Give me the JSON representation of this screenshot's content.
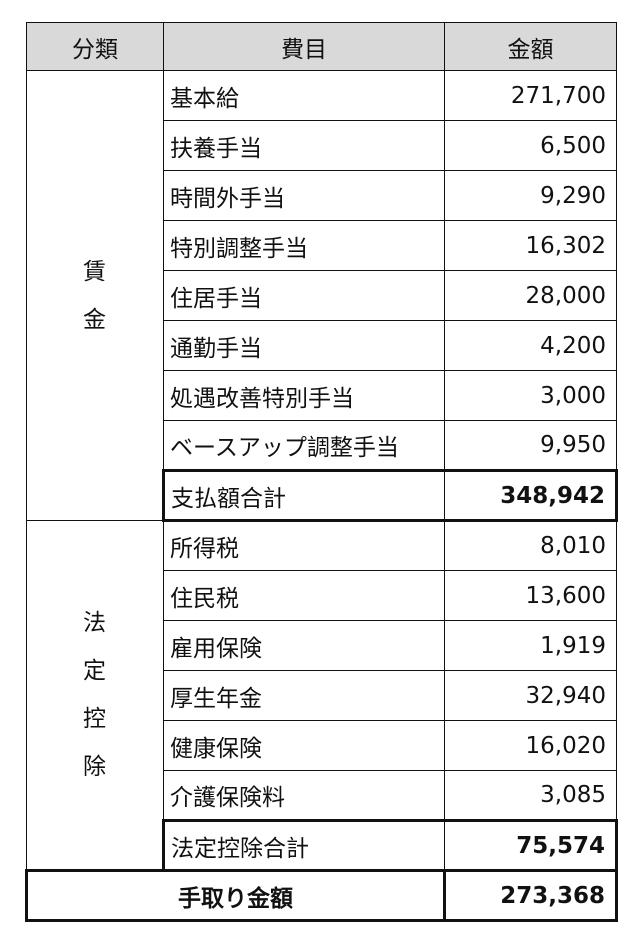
{
  "headers": {
    "category": "分類",
    "item": "費目",
    "amount": "金額"
  },
  "wages": {
    "category_chars": [
      "賃",
      "金"
    ],
    "items": [
      {
        "name": "基本給",
        "amount": "271,700"
      },
      {
        "name": "扶養手当",
        "amount": "6,500"
      },
      {
        "name": "時間外手当",
        "amount": "9,290"
      },
      {
        "name": "特別調整手当",
        "amount": "16,302"
      },
      {
        "name": "住居手当",
        "amount": "28,000"
      },
      {
        "name": "通勤手当",
        "amount": "4,200"
      },
      {
        "name": "処遇改善特別手当",
        "amount": "3,000"
      },
      {
        "name": "ベースアップ調整手当",
        "amount": "9,950"
      }
    ],
    "total": {
      "name": "支払額合計",
      "amount": "348,942"
    }
  },
  "deductions": {
    "category_chars": [
      "法",
      "定",
      "控",
      "除"
    ],
    "items": [
      {
        "name": "所得税",
        "amount": "8,010"
      },
      {
        "name": "住民税",
        "amount": "13,600"
      },
      {
        "name": "雇用保険",
        "amount": "1,919"
      },
      {
        "name": "厚生年金",
        "amount": "32,940"
      },
      {
        "name": "健康保険",
        "amount": "16,020"
      },
      {
        "name": "介護保険料",
        "amount": "3,085"
      }
    ],
    "total": {
      "name": "法定控除合計",
      "amount": "75,574"
    }
  },
  "net": {
    "label": "手取り金額",
    "amount": "273,368"
  }
}
